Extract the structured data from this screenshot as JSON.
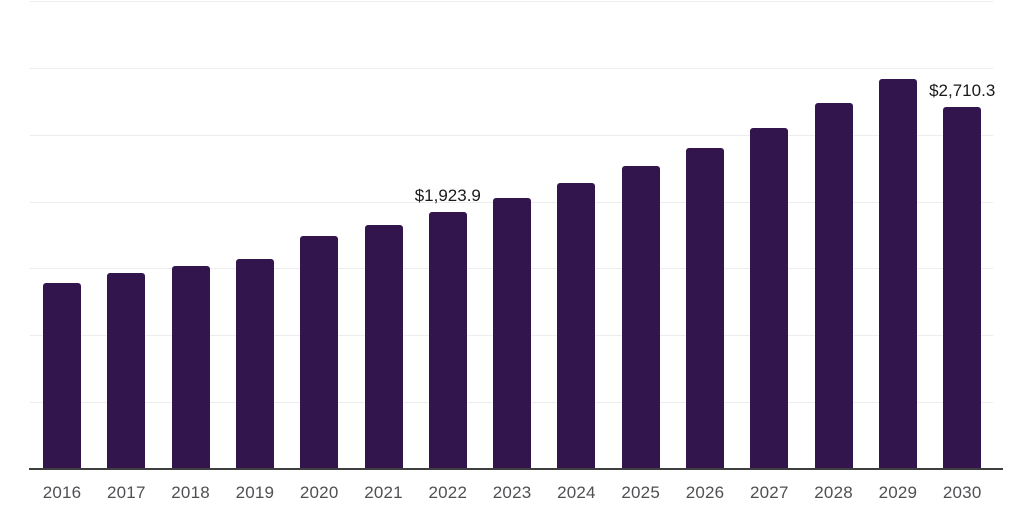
{
  "chart": {
    "background_color": "#ffffff",
    "bar_color": "#33154e",
    "gridline_color": "#ededed",
    "axis_line_color": "#3f3f3f",
    "year_label_color": "#505054",
    "value_label_color": "#1a1a1a"
  },
  "chart_data": {
    "type": "bar",
    "title": "",
    "xlabel": "",
    "ylabel": "",
    "categories": [
      "2016",
      "2017",
      "2018",
      "2019",
      "2020",
      "2021",
      "2022",
      "2023",
      "2024",
      "2025",
      "2026",
      "2027",
      "2028",
      "2029",
      "2030"
    ],
    "values": [
      1392,
      1467,
      1520,
      1572,
      1744,
      1827,
      1923.9,
      2029,
      2141,
      2268,
      2403,
      2553,
      2740,
      2920,
      2710.3
    ],
    "data_labels": [
      {
        "category": "2022",
        "text": "$1,923.9"
      },
      {
        "category": "2030",
        "text": "$2,710.3"
      }
    ],
    "ylim": [
      0,
      3500
    ],
    "gridline_values": [
      500,
      1000,
      1500,
      2000,
      2500,
      3000,
      3500
    ],
    "grid": true,
    "legend": false,
    "y_tick_labels_visible": false
  }
}
